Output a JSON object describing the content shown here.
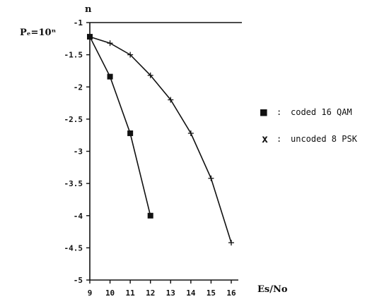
{
  "chart_data": {
    "type": "line",
    "x_title": "Es/No",
    "y_title": "n",
    "corner_label": "Pₑ=10ⁿ",
    "xlim": [
      9,
      16
    ],
    "ylim": [
      -5,
      -1
    ],
    "x_ticks": [
      "9",
      "10",
      "11",
      "12",
      "13",
      "14",
      "15",
      "16"
    ],
    "y_ticks": [
      "-1",
      "-1.5",
      "-2",
      "-2.5",
      "-3",
      "-3.5",
      "-4",
      "-4.5",
      "-5"
    ],
    "grid": false,
    "legend_position": "right",
    "series": [
      {
        "name": "coded 16 QAM",
        "marker": "square",
        "legend_symbol": "■",
        "legend_separator": ":",
        "x": [
          9,
          10,
          11,
          12
        ],
        "y": [
          -1.22,
          -1.84,
          -2.72,
          -4.0
        ]
      },
      {
        "name": "uncoded 8 PSK",
        "marker": "cross",
        "legend_symbol": "x",
        "legend_separator": ":",
        "x": [
          9,
          10,
          11,
          12,
          13,
          14,
          15,
          16
        ],
        "y": [
          -1.22,
          -1.32,
          -1.5,
          -1.82,
          -2.2,
          -2.72,
          -3.42,
          -4.42
        ]
      }
    ]
  }
}
